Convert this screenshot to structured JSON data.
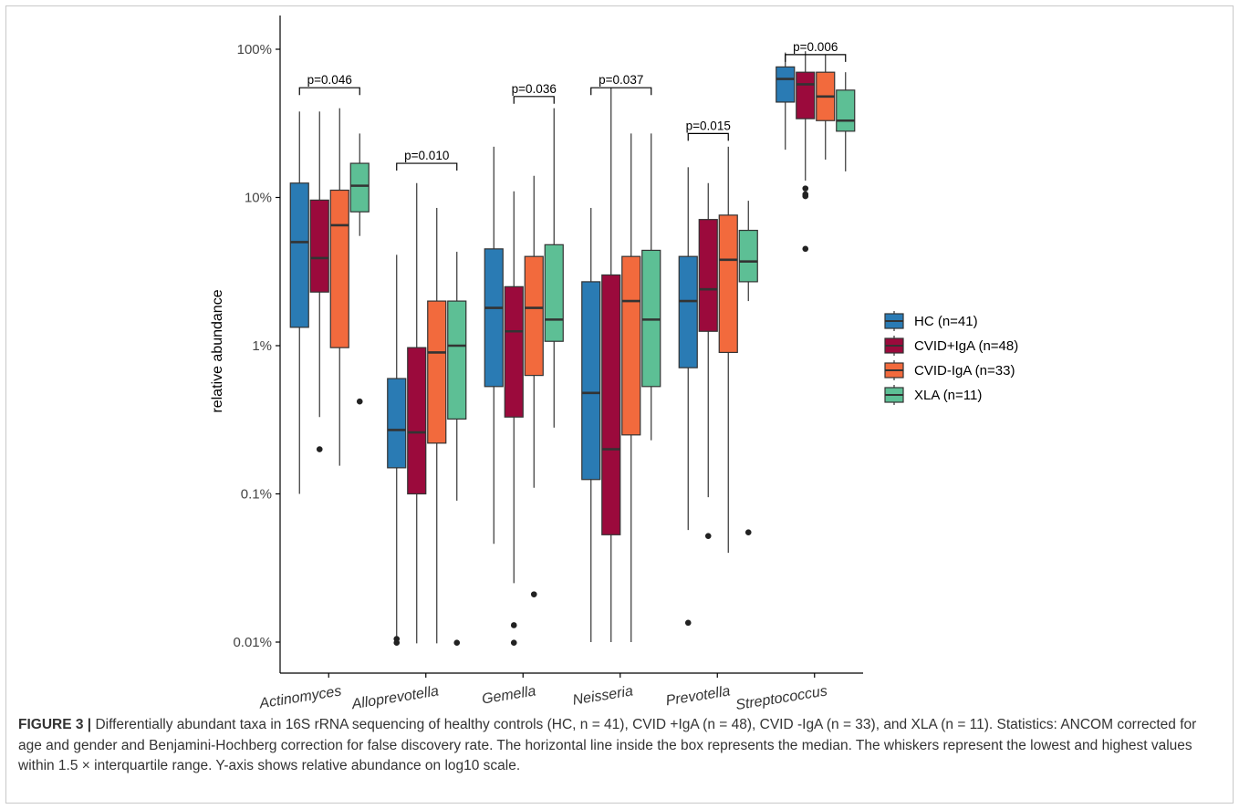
{
  "chart_data": {
    "type": "box",
    "ylabel": "relative abundance",
    "yscale": "log10",
    "ylim": [
      0.01,
      100
    ],
    "y_ticks": [
      {
        "value": 0.01,
        "label": "0.01%"
      },
      {
        "value": 0.1,
        "label": "0.1%"
      },
      {
        "value": 1,
        "label": "1%"
      },
      {
        "value": 10,
        "label": "10%"
      },
      {
        "value": 100,
        "label": "100%"
      }
    ],
    "categories": [
      "Actinomyces",
      "Alloprevotella",
      "Gemella",
      "Neisseria",
      "Prevotella",
      "Streptococcus"
    ],
    "series": [
      {
        "name": "HC (n=41)",
        "color": "#2a7bb4"
      },
      {
        "name": "CVID+IgA (n=48)",
        "color": "#9b0a3c"
      },
      {
        "name": "CVID-IgA (n=33)",
        "color": "#f26a3d"
      },
      {
        "name": "XLA (n=11)",
        "color": "#5dbf95"
      }
    ],
    "boxes": [
      [
        {
          "low": 0.1,
          "q1": 1.33,
          "median": 5.0,
          "q3": 12.5,
          "high": 38.0,
          "outliers": []
        },
        {
          "low": 0.33,
          "q1": 2.3,
          "median": 3.9,
          "q3": 9.6,
          "high": 38.0,
          "outliers": [
            0.2
          ]
        },
        {
          "low": 0.155,
          "q1": 0.97,
          "median": 6.5,
          "q3": 11.2,
          "high": 40.0,
          "outliers": []
        },
        {
          "low": 5.5,
          "q1": 8.0,
          "median": 12.0,
          "q3": 17.0,
          "high": 27.0,
          "outliers": [
            0.42
          ]
        }
      ],
      [
        {
          "low": 0.01,
          "q1": 0.15,
          "median": 0.27,
          "q3": 0.6,
          "high": 4.1,
          "outliers": [
            0.0105,
            0.0099
          ]
        },
        {
          "low": 0.0098,
          "q1": 0.1,
          "median": 0.26,
          "q3": 0.97,
          "high": 12.5,
          "outliers": []
        },
        {
          "low": 0.0098,
          "q1": 0.22,
          "median": 0.9,
          "q3": 2.0,
          "high": 8.5,
          "outliers": []
        },
        {
          "low": 0.09,
          "q1": 0.32,
          "median": 1.0,
          "q3": 2.0,
          "high": 4.3,
          "outliers": [
            0.0099
          ]
        }
      ],
      [
        {
          "low": 0.046,
          "q1": 0.53,
          "median": 1.8,
          "q3": 4.5,
          "high": 22.0,
          "outliers": []
        },
        {
          "low": 0.025,
          "q1": 0.33,
          "median": 1.25,
          "q3": 2.5,
          "high": 11.0,
          "outliers": [
            0.013,
            0.0099
          ]
        },
        {
          "low": 0.11,
          "q1": 0.63,
          "median": 1.8,
          "q3": 4.0,
          "high": 14.0,
          "outliers": [
            0.021
          ]
        },
        {
          "low": 0.28,
          "q1": 1.07,
          "median": 1.5,
          "q3": 4.8,
          "high": 40.0,
          "outliers": []
        }
      ],
      [
        {
          "low": 0.01,
          "q1": 0.125,
          "median": 0.48,
          "q3": 2.7,
          "high": 8.5,
          "outliers": []
        },
        {
          "low": 0.01,
          "q1": 0.053,
          "median": 0.2,
          "q3": 3.0,
          "high": 55.0,
          "outliers": []
        },
        {
          "low": 0.01,
          "q1": 0.25,
          "median": 2.0,
          "q3": 4.0,
          "high": 27.0,
          "outliers": []
        },
        {
          "low": 0.23,
          "q1": 0.53,
          "median": 1.5,
          "q3": 4.4,
          "high": 27.0,
          "outliers": []
        }
      ],
      [
        {
          "low": 0.057,
          "q1": 0.71,
          "median": 2.0,
          "q3": 4.0,
          "high": 16.0,
          "outliers": [
            0.0135
          ]
        },
        {
          "low": 0.095,
          "q1": 1.25,
          "median": 2.4,
          "q3": 7.1,
          "high": 12.5,
          "outliers": [
            0.052
          ]
        },
        {
          "low": 0.04,
          "q1": 0.9,
          "median": 3.8,
          "q3": 7.6,
          "high": 22.0,
          "outliers": []
        },
        {
          "low": 2.0,
          "q1": 2.7,
          "median": 3.7,
          "q3": 6.0,
          "high": 9.5,
          "outliers": [
            0.055
          ]
        }
      ],
      [
        {
          "low": 21.0,
          "q1": 44.0,
          "median": 63.0,
          "q3": 76.0,
          "high": 95.0,
          "outliers": []
        },
        {
          "low": 13.0,
          "q1": 34.0,
          "median": 58.0,
          "q3": 70.0,
          "high": 97.0,
          "outliers": [
            11.5,
            10.5,
            10.2,
            4.5
          ]
        },
        {
          "low": 18.0,
          "q1": 33.0,
          "median": 48.0,
          "q3": 70.0,
          "high": 92.0,
          "outliers": []
        },
        {
          "low": 15.0,
          "q1": 28.0,
          "median": 33.0,
          "q3": 53.0,
          "high": 70.0,
          "outliers": []
        }
      ]
    ],
    "annotations": [
      {
        "category": "Actinomyces",
        "text": "p=0.046",
        "from_series": 0,
        "to_series": 3,
        "y": 55
      },
      {
        "category": "Alloprevotella",
        "text": "p=0.010",
        "from_series": 0,
        "to_series": 3,
        "y": 17
      },
      {
        "category": "Gemella",
        "text": "p=0.036",
        "from_series": 1,
        "to_series": 3,
        "y": 48
      },
      {
        "category": "Neisseria",
        "text": "p=0.037",
        "from_series": 0,
        "to_series": 3,
        "y": 55
      },
      {
        "category": "Prevotella",
        "text": "p=0.015",
        "from_series": 0,
        "to_series": 2,
        "y": 27
      },
      {
        "category": "Streptococcus",
        "text": "p=0.006",
        "from_series": 0,
        "to_series": 3,
        "y": 92
      }
    ],
    "legend_position": "right"
  },
  "caption": {
    "label": "FIGURE 3 |",
    "text": "Differentially abundant taxa in 16S rRNA sequencing of healthy controls (HC, n = 41), CVID +IgA (n = 48), CVID -IgA (n = 33), and XLA (n = 11). Statistics: ANCOM corrected for age and gender and Benjamini-Hochberg correction for false discovery rate. The horizontal line inside the box represents the median. The whiskers represent the lowest and highest values within 1.5 × interquartile range. Y-axis shows relative abundance on log10 scale."
  }
}
